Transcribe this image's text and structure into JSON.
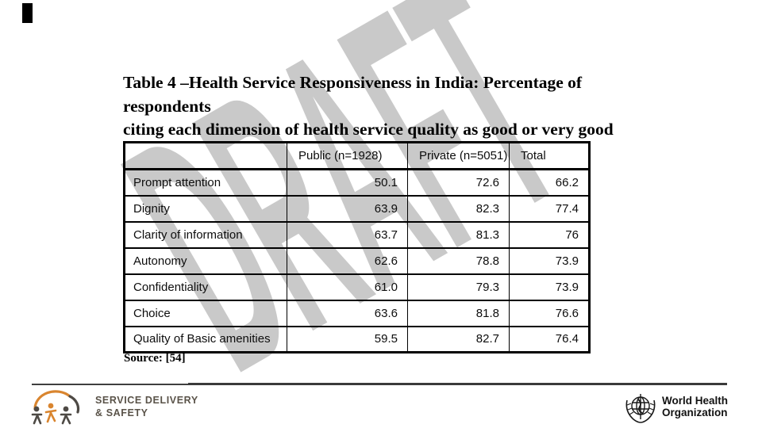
{
  "slide": {
    "title_line1": "Table 4 –Health Service Responsiveness in India: Percentage of respondents",
    "title_line2": "citing each dimension of health service quality as good or very good",
    "source": "Source: [54]",
    "watermark": "DRAFT"
  },
  "table": {
    "columns": [
      "",
      "Public (n=1928)",
      "Private (n=5051)",
      "Total"
    ],
    "rows": [
      {
        "label": "Prompt attention",
        "public": "50.1",
        "private": "72.6",
        "total": "66.2"
      },
      {
        "label": "Dignity",
        "public": "63.9",
        "private": "82.3",
        "total": "77.4"
      },
      {
        "label": "Clarity of information",
        "public": "63.7",
        "private": "81.3",
        "total": "76"
      },
      {
        "label": "Autonomy",
        "public": "62.6",
        "private": "78.8",
        "total": "73.9"
      },
      {
        "label": "Confidentiality",
        "public": "61.0",
        "private": "79.3",
        "total": "73.9"
      },
      {
        "label": "Choice",
        "public": "63.6",
        "private": "81.8",
        "total": "76.6"
      },
      {
        "label": "Quality of Basic amenities",
        "public": "59.5",
        "private": "82.7",
        "total": "76.4"
      }
    ]
  },
  "chart_data": {
    "type": "table",
    "title": "Health Service Responsiveness in India: Percentage of respondents citing each dimension of health service quality as good or very good",
    "categories": [
      "Prompt attention",
      "Dignity",
      "Clarity of information",
      "Autonomy",
      "Confidentiality",
      "Choice",
      "Quality of Basic amenities"
    ],
    "series": [
      {
        "name": "Public (n=1928)",
        "values": [
          50.1,
          63.9,
          63.7,
          62.6,
          61.0,
          63.6,
          59.5
        ]
      },
      {
        "name": "Private (n=5051)",
        "values": [
          72.6,
          82.3,
          81.3,
          78.8,
          79.3,
          81.8,
          82.7
        ]
      },
      {
        "name": "Total",
        "values": [
          66.2,
          77.4,
          76,
          73.9,
          73.9,
          76.6,
          76.4
        ]
      }
    ]
  },
  "footer": {
    "sds_logo": {
      "line1": "SERVICE DELIVERY",
      "line2": "& SAFETY"
    },
    "who_logo": {
      "line1": "World Health",
      "line2": "Organization"
    }
  },
  "colors": {
    "accent_orange": "#d9852f",
    "logo_dark": "#4e4a45",
    "logo_text": "#5a5349",
    "watermark_gray": "#c9c9c9",
    "footer_line": "#3a3a3a",
    "table_border": "#000000"
  }
}
